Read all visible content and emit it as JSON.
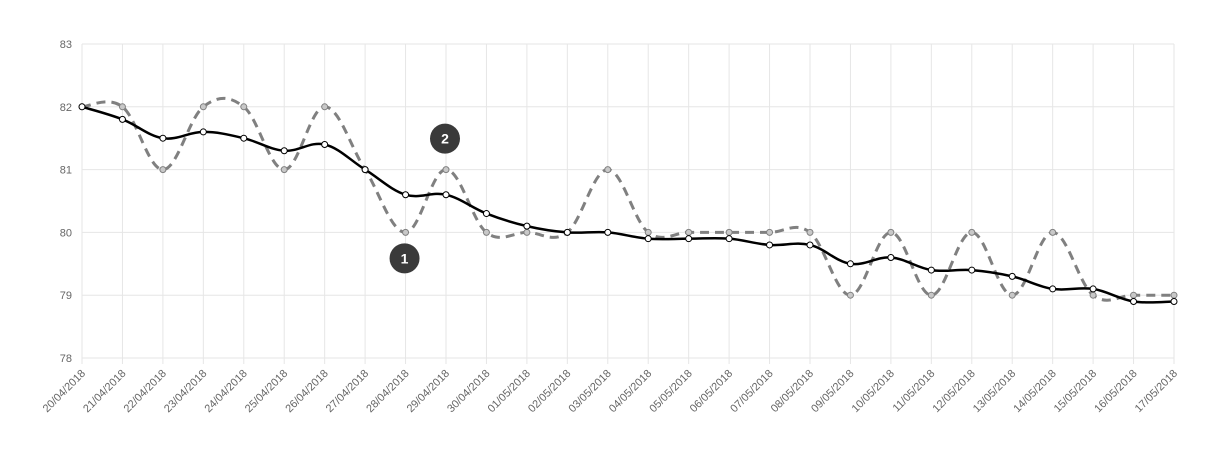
{
  "chart_data": {
    "type": "line",
    "title": "",
    "xlabel": "",
    "ylabel": "",
    "ylim": [
      78,
      83
    ],
    "yticks": [
      "78",
      "79",
      "80",
      "81",
      "82",
      "83"
    ],
    "grid": true,
    "legend": "none",
    "categories": [
      "20/04/2018",
      "21/04/2018",
      "22/04/2018",
      "23/04/2018",
      "24/04/2018",
      "25/04/2018",
      "26/04/2018",
      "27/04/2018",
      "28/04/2018",
      "29/04/2018",
      "30/04/2018",
      "01/05/2018",
      "02/05/2018",
      "03/05/2018",
      "04/05/2018",
      "05/05/2018",
      "06/05/2018",
      "07/05/2018",
      "08/05/2018",
      "09/05/2018",
      "10/05/2018",
      "11/05/2018",
      "12/05/2018",
      "13/05/2018",
      "14/05/2018",
      "15/05/2018",
      "16/05/2018",
      "17/05/2018"
    ],
    "series": [
      {
        "style": "dashed",
        "color": "#808080",
        "values": [
          82,
          82,
          81,
          82,
          82,
          81,
          82,
          81,
          80,
          81,
          80,
          80,
          80,
          81,
          80,
          80,
          80,
          80,
          80,
          79,
          80,
          79,
          80,
          79,
          80,
          79,
          79,
          79
        ]
      },
      {
        "style": "solid",
        "color": "#000000",
        "values": [
          82,
          81.8,
          81.5,
          81.6,
          81.5,
          81.3,
          81.4,
          81,
          80.6,
          80.6,
          80.3,
          80.1,
          80,
          80,
          79.9,
          79.9,
          79.9,
          79.8,
          79.8,
          79.5,
          79.6,
          79.4,
          79.4,
          79.3,
          79.1,
          79.1,
          78.9,
          78.9
        ]
      }
    ],
    "annotations": [
      {
        "label": "1",
        "category": "28/04/2018",
        "series": 0
      },
      {
        "label": "2",
        "category": "29/04/2018",
        "series": 0
      }
    ]
  },
  "colors": {
    "grid": "#e6e6e6",
    "marker_bg": "#3a3a3a",
    "marker_text": "#ffffff"
  }
}
